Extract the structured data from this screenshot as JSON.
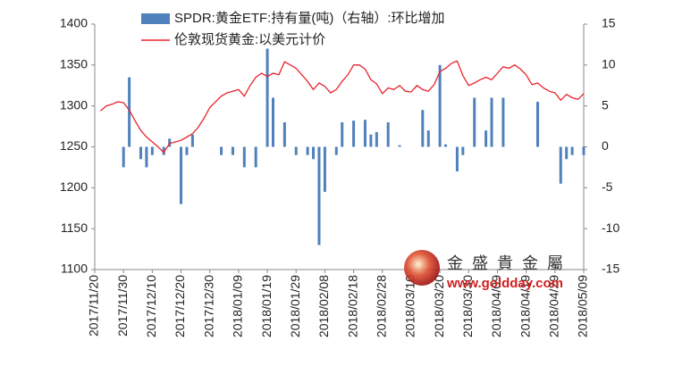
{
  "chart_data": {
    "type": "bar_line",
    "categories": [
      "2017/11/20",
      null,
      null,
      null,
      null,
      "2017/11/30",
      null,
      null,
      null,
      null,
      "2017/12/10",
      null,
      null,
      null,
      null,
      "2017/12/20",
      null,
      null,
      null,
      null,
      "2017/12/30",
      null,
      null,
      null,
      null,
      "2018/01/09",
      null,
      null,
      null,
      null,
      "2018/01/19",
      null,
      null,
      null,
      null,
      "2018/01/29",
      null,
      null,
      null,
      null,
      "2018/02/08",
      null,
      null,
      null,
      null,
      "2018/02/18",
      null,
      null,
      null,
      null,
      "2018/02/28",
      null,
      null,
      null,
      null,
      "2018/03/10",
      null,
      null,
      null,
      null,
      "2018/03/20",
      null,
      null,
      null,
      null,
      "2018/03/30",
      null,
      null,
      null,
      null,
      "2018/04/09",
      null,
      null,
      null,
      null,
      "2018/04/19",
      null,
      null,
      null,
      null,
      "2018/04/29",
      null,
      null,
      null,
      null,
      "2018/05/09"
    ],
    "series": [
      {
        "name": "SPDR:黄金ETF:持有量(吨)（右轴）:环比增加",
        "type": "bar",
        "axis": "y2",
        "color": "#4f81bd",
        "values": [
          null,
          null,
          null,
          null,
          null,
          -2.5,
          8.5,
          null,
          -1.5,
          -2.5,
          -1,
          null,
          -1,
          1,
          null,
          -7,
          -1,
          1.5,
          null,
          null,
          null,
          null,
          -1,
          null,
          -1,
          null,
          -2.5,
          null,
          -2.5,
          null,
          12,
          6,
          null,
          3,
          null,
          -1,
          null,
          -1,
          -1.5,
          -12,
          -5.5,
          null,
          -1,
          3,
          null,
          3.2,
          null,
          3.3,
          1.5,
          1.8,
          null,
          3,
          null,
          0.2,
          null,
          null,
          null,
          4.5,
          2,
          null,
          10,
          0.3,
          null,
          -3,
          -1,
          null,
          6,
          null,
          2,
          6,
          null,
          6,
          null,
          null,
          null,
          null,
          null,
          5.5,
          null,
          null,
          null,
          -4.5,
          -1.5,
          -1,
          null,
          -1
        ]
      },
      {
        "name": "伦敦现货黄金:以美元计价",
        "type": "line",
        "axis": "y",
        "color": "#e8242f",
        "values": [
          null,
          1294,
          1300,
          1302,
          1305,
          1304,
          1295,
          1282,
          1270,
          1262,
          1256,
          1250,
          1243,
          1254,
          1256,
          1258,
          1262,
          1266,
          1274,
          1285,
          1298,
          1305,
          1312,
          1316,
          1318,
          1320,
          1312,
          1325,
          1335,
          1340,
          1336,
          1340,
          1338,
          1354,
          1350,
          1346,
          1338,
          1330,
          1320,
          1328,
          1324,
          1316,
          1320,
          1330,
          1338,
          1350,
          1350,
          1345,
          1332,
          1327,
          1315,
          1322,
          1320,
          1325,
          1318,
          1317,
          1325,
          1320,
          1318,
          1326,
          1342,
          1346,
          1352,
          1355,
          1337,
          1325,
          1328,
          1332,
          1335,
          1332,
          1340,
          1348,
          1346,
          1350,
          1345,
          1338,
          1326,
          1328,
          1322,
          1318,
          1316,
          1307,
          1314,
          1310,
          1308,
          1315
        ]
      }
    ],
    "ylim": [
      1100,
      1400
    ],
    "yticks": [
      1100,
      1150,
      1200,
      1250,
      1300,
      1350,
      1400
    ],
    "y2lim": [
      -15,
      15
    ],
    "y2ticks": [
      -15,
      -10,
      -5,
      0,
      5,
      10,
      15
    ],
    "watermark": [
      "金盛貴金屬",
      "www.goldday.com"
    ]
  }
}
